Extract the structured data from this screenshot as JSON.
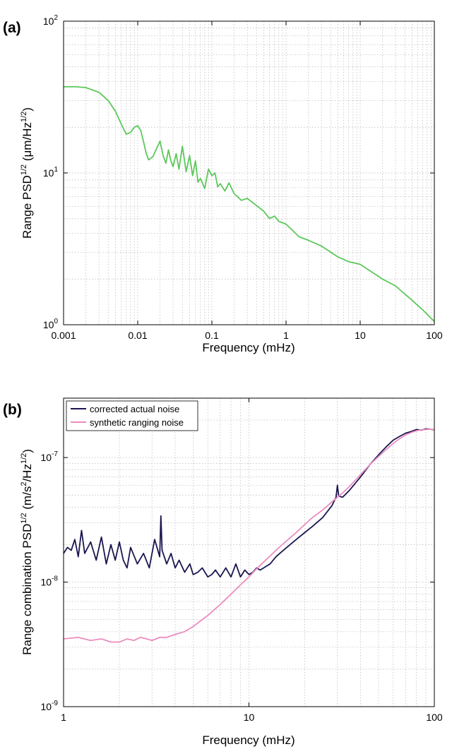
{
  "chart_data": [
    {
      "type": "line",
      "panel_label": "(a)",
      "xlabel": "Frequency (mHz)",
      "ylabel": {
        "base": "Range PSD",
        "sup": "1/2",
        "units_open": " (μm/Hz",
        "units_sup": "1/2",
        "units_close": ")"
      },
      "xscale": "log",
      "yscale": "log",
      "xlim": [
        0.001,
        100
      ],
      "ylim": [
        1,
        100
      ],
      "x_ticks": [
        {
          "value": 0.001,
          "label": "0.001"
        },
        {
          "value": 0.01,
          "label": "0.01"
        },
        {
          "value": 0.1,
          "label": "0.1"
        },
        {
          "value": 1,
          "label": "1"
        },
        {
          "value": 10,
          "label": "10"
        },
        {
          "value": 100,
          "label": "100"
        }
      ],
      "y_ticks": [
        {
          "value": 1,
          "base": "10",
          "exp": "0"
        },
        {
          "value": 10,
          "base": "10",
          "exp": "1"
        },
        {
          "value": 100,
          "base": "10",
          "exp": "2"
        }
      ],
      "grid": true,
      "series": [
        {
          "color": "#5cc85a",
          "x": [
            0.001,
            0.0015,
            0.002,
            0.003,
            0.004,
            0.005,
            0.006,
            0.007,
            0.008,
            0.009,
            0.01,
            0.011,
            0.012,
            0.013,
            0.014,
            0.016,
            0.018,
            0.02,
            0.022,
            0.024,
            0.026,
            0.028,
            0.03,
            0.033,
            0.036,
            0.04,
            0.045,
            0.05,
            0.055,
            0.06,
            0.065,
            0.07,
            0.08,
            0.09,
            0.1,
            0.11,
            0.12,
            0.13,
            0.15,
            0.17,
            0.2,
            0.25,
            0.3,
            0.4,
            0.5,
            0.6,
            0.7,
            0.8,
            1,
            1.5,
            2,
            3,
            5,
            7,
            10,
            20,
            30,
            50,
            70,
            100
          ],
          "y": [
            37,
            37,
            36.5,
            34,
            30,
            25.5,
            21,
            18,
            18.5,
            20,
            20.5,
            19,
            16,
            13.5,
            12.2,
            12.8,
            14.5,
            16.2,
            13,
            11.6,
            14.2,
            12,
            11,
            13.4,
            10.6,
            15,
            10.2,
            13,
            9.6,
            12,
            8.7,
            9.2,
            7.9,
            10.6,
            9.6,
            10,
            8.1,
            8.5,
            7.6,
            8.6,
            7.3,
            6.6,
            6.8,
            6.1,
            5.6,
            5.0,
            5.2,
            4.8,
            4.6,
            3.8,
            3.6,
            3.3,
            2.8,
            2.6,
            2.5,
            2.0,
            1.8,
            1.45,
            1.25,
            1.05
          ]
        }
      ]
    },
    {
      "type": "line",
      "panel_label": "(b)",
      "xlabel": "Frequency (mHz)",
      "ylabel": {
        "base": "Range combination PSD",
        "sup": "1/2",
        "units_open": " (m/s",
        "units_sup": "2",
        "units_mid": "/Hz",
        "units_sup2": "1/2",
        "units_close": ")"
      },
      "xscale": "log",
      "yscale": "log",
      "xlim": [
        1,
        100
      ],
      "ylim": [
        1e-09,
        3e-07
      ],
      "x_ticks": [
        {
          "value": 1,
          "label": "1"
        },
        {
          "value": 10,
          "label": "10"
        },
        {
          "value": 100,
          "label": "100"
        }
      ],
      "y_ticks": [
        {
          "value": 1e-09,
          "base": "10",
          "exp": "-9"
        },
        {
          "value": 1e-08,
          "base": "10",
          "exp": "-8"
        },
        {
          "value": 1e-07,
          "base": "10",
          "exp": "-7"
        }
      ],
      "grid": true,
      "legend": "top-left",
      "series": [
        {
          "name": "corrected actual noise",
          "color": "#1a1650",
          "x": [
            1,
            1.05,
            1.1,
            1.15,
            1.2,
            1.25,
            1.3,
            1.4,
            1.5,
            1.6,
            1.7,
            1.8,
            1.9,
            2,
            2.1,
            2.2,
            2.3,
            2.5,
            2.7,
            2.9,
            3.1,
            3.3,
            3.35,
            3.4,
            3.6,
            3.8,
            4,
            4.2,
            4.5,
            4.8,
            5,
            5.3,
            5.6,
            6,
            6.3,
            6.6,
            7,
            7.5,
            8,
            8.5,
            9,
            9.5,
            10,
            10.5,
            11,
            11.5,
            12,
            13,
            14,
            15,
            16,
            18,
            20,
            22,
            25,
            28,
            29.5,
            30,
            30.5,
            32,
            35,
            40,
            45,
            50,
            55,
            60,
            65,
            70,
            75,
            80,
            85,
            90,
            95,
            100
          ],
          "y": [
            1.7e-08,
            1.9e-08,
            1.8e-08,
            2.2e-08,
            1.6e-08,
            2.6e-08,
            1.7e-08,
            2.1e-08,
            1.5e-08,
            2.3e-08,
            1.4e-08,
            2e-08,
            1.5e-08,
            2.1e-08,
            1.5e-08,
            1.3e-08,
            1.9e-08,
            1.4e-08,
            1.7e-08,
            1.3e-08,
            2.2e-08,
            1.6e-08,
            3.4e-08,
            1.8e-08,
            1.4e-08,
            1.7e-08,
            1.3e-08,
            1.5e-08,
            1.2e-08,
            1.4e-08,
            1.15e-08,
            1.2e-08,
            1.3e-08,
            1.1e-08,
            1.15e-08,
            1.25e-08,
            1.1e-08,
            1.3e-08,
            1.1e-08,
            1.4e-08,
            1.1e-08,
            1.25e-08,
            1.15e-08,
            1.2e-08,
            1.3e-08,
            1.25e-08,
            1.3e-08,
            1.4e-08,
            1.6e-08,
            1.75e-08,
            1.9e-08,
            2.2e-08,
            2.5e-08,
            2.8e-08,
            3.3e-08,
            4.1e-08,
            4.8e-08,
            6e-08,
            4.9e-08,
            4.8e-08,
            5.5e-08,
            7e-08,
            8.8e-08,
            1.05e-07,
            1.22e-07,
            1.38e-07,
            1.48e-07,
            1.57e-07,
            1.62e-07,
            1.68e-07,
            1.66e-07,
            1.7e-07,
            1.69e-07,
            1.67e-07
          ]
        },
        {
          "name": "synthetic ranging noise",
          "color": "#ec8cbf",
          "x": [
            1,
            1.2,
            1.4,
            1.6,
            1.8,
            2,
            2.2,
            2.4,
            2.6,
            2.8,
            3,
            3.3,
            3.6,
            4,
            4.5,
            5,
            5.5,
            6,
            6.5,
            7,
            7.5,
            8,
            9,
            10,
            11,
            12,
            13,
            14,
            15,
            16,
            18,
            20,
            22,
            25,
            28,
            30,
            32,
            35,
            40,
            45,
            50,
            55,
            60,
            65,
            70,
            75,
            80,
            85,
            90,
            95,
            100
          ],
          "y": [
            3.5e-09,
            3.6e-09,
            3.4e-09,
            3.5e-09,
            3.3e-09,
            3.3e-09,
            3.5e-09,
            3.4e-09,
            3.6e-09,
            3.5e-09,
            3.4e-09,
            3.6e-09,
            3.6e-09,
            3.8e-09,
            4e-09,
            4.4e-09,
            4.9e-09,
            5.4e-09,
            6e-09,
            6.6e-09,
            7.3e-09,
            8e-09,
            9.5e-09,
            1.1e-08,
            1.28e-08,
            1.45e-08,
            1.62e-08,
            1.8e-08,
            1.98e-08,
            2.15e-08,
            2.5e-08,
            2.9e-08,
            3.3e-08,
            3.8e-08,
            4.4e-08,
            4.8e-08,
            5.2e-08,
            5.9e-08,
            7.3e-08,
            8.8e-08,
            1.02e-07,
            1.16e-07,
            1.3e-07,
            1.42e-07,
            1.52e-07,
            1.59e-07,
            1.64e-07,
            1.67e-07,
            1.68e-07,
            1.69e-07,
            1.68e-07
          ]
        }
      ]
    }
  ]
}
